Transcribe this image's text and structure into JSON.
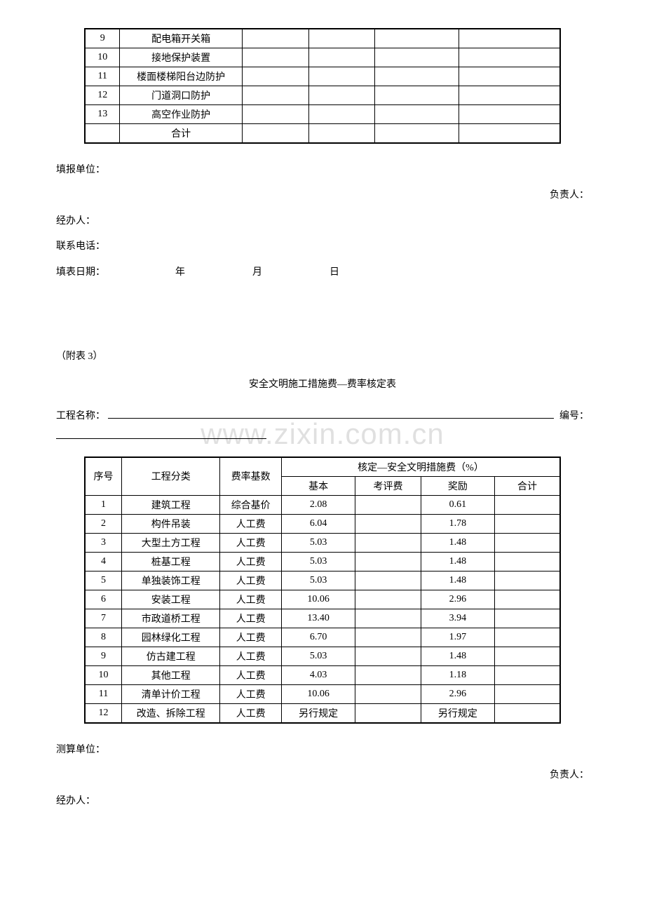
{
  "table1": {
    "rows": [
      {
        "idx": "9",
        "name": "配电箱开关箱"
      },
      {
        "idx": "10",
        "name": "接地保护装置"
      },
      {
        "idx": "11",
        "name": "楼面楼梯阳台边防护"
      },
      {
        "idx": "12",
        "name": "门道洞口防护"
      },
      {
        "idx": "13",
        "name": "高空作业防护"
      },
      {
        "idx": "",
        "name": "合计"
      }
    ]
  },
  "labels1": {
    "report_unit": "填报单位：",
    "responsible": "负责人：",
    "handler": "经办人：",
    "phone": "联系电话：",
    "fill_date": "填表日期：",
    "year": "年",
    "month": "月",
    "day": "日"
  },
  "appendix": "（附表 3）",
  "title2": "安全文明施工措施费—费率核定表",
  "project_name_label": "工程名称：",
  "serial_label": "编号：",
  "watermark": "www.zixin.com.cn",
  "table2": {
    "header": {
      "idx": "序号",
      "cat": "工程分类",
      "base": "费率基数",
      "group": "核定—安全文明措施费（%）",
      "basic": "基本",
      "eval": "考评费",
      "reward": "奖励",
      "total": "合计"
    },
    "rows": [
      {
        "idx": "1",
        "cat": "建筑工程",
        "base": "综合基价",
        "basic": "2.08",
        "eval": "",
        "reward": "0.61",
        "total": ""
      },
      {
        "idx": "2",
        "cat": "构件吊装",
        "base": "人工费",
        "basic": "6.04",
        "eval": "",
        "reward": "1.78",
        "total": ""
      },
      {
        "idx": "3",
        "cat": "大型土方工程",
        "base": "人工费",
        "basic": "5.03",
        "eval": "",
        "reward": "1.48",
        "total": ""
      },
      {
        "idx": "4",
        "cat": "桩基工程",
        "base": "人工费",
        "basic": "5.03",
        "eval": "",
        "reward": "1.48",
        "total": ""
      },
      {
        "idx": "5",
        "cat": "单独装饰工程",
        "base": "人工费",
        "basic": "5.03",
        "eval": "",
        "reward": "1.48",
        "total": ""
      },
      {
        "idx": "6",
        "cat": "安装工程",
        "base": "人工费",
        "basic": "10.06",
        "eval": "",
        "reward": "2.96",
        "total": ""
      },
      {
        "idx": "7",
        "cat": "市政道桥工程",
        "base": "人工费",
        "basic": "13.40",
        "eval": "",
        "reward": "3.94",
        "total": ""
      },
      {
        "idx": "8",
        "cat": "园林绿化工程",
        "base": "人工费",
        "basic": "6.70",
        "eval": "",
        "reward": "1.97",
        "total": ""
      },
      {
        "idx": "9",
        "cat": "仿古建工程",
        "base": "人工费",
        "basic": "5.03",
        "eval": "",
        "reward": "1.48",
        "total": ""
      },
      {
        "idx": "10",
        "cat": "其他工程",
        "base": "人工费",
        "basic": "4.03",
        "eval": "",
        "reward": "1.18",
        "total": ""
      },
      {
        "idx": "11",
        "cat": "清单计价工程",
        "base": "人工费",
        "basic": "10.06",
        "eval": "",
        "reward": "2.96",
        "total": ""
      },
      {
        "idx": "12",
        "cat": "改造、拆除工程",
        "base": "人工费",
        "basic": "另行规定",
        "eval": "",
        "reward": "另行规定",
        "total": ""
      }
    ]
  },
  "labels2": {
    "calc_unit": "测算单位：",
    "responsible": "负责人：",
    "handler": "经办人："
  }
}
